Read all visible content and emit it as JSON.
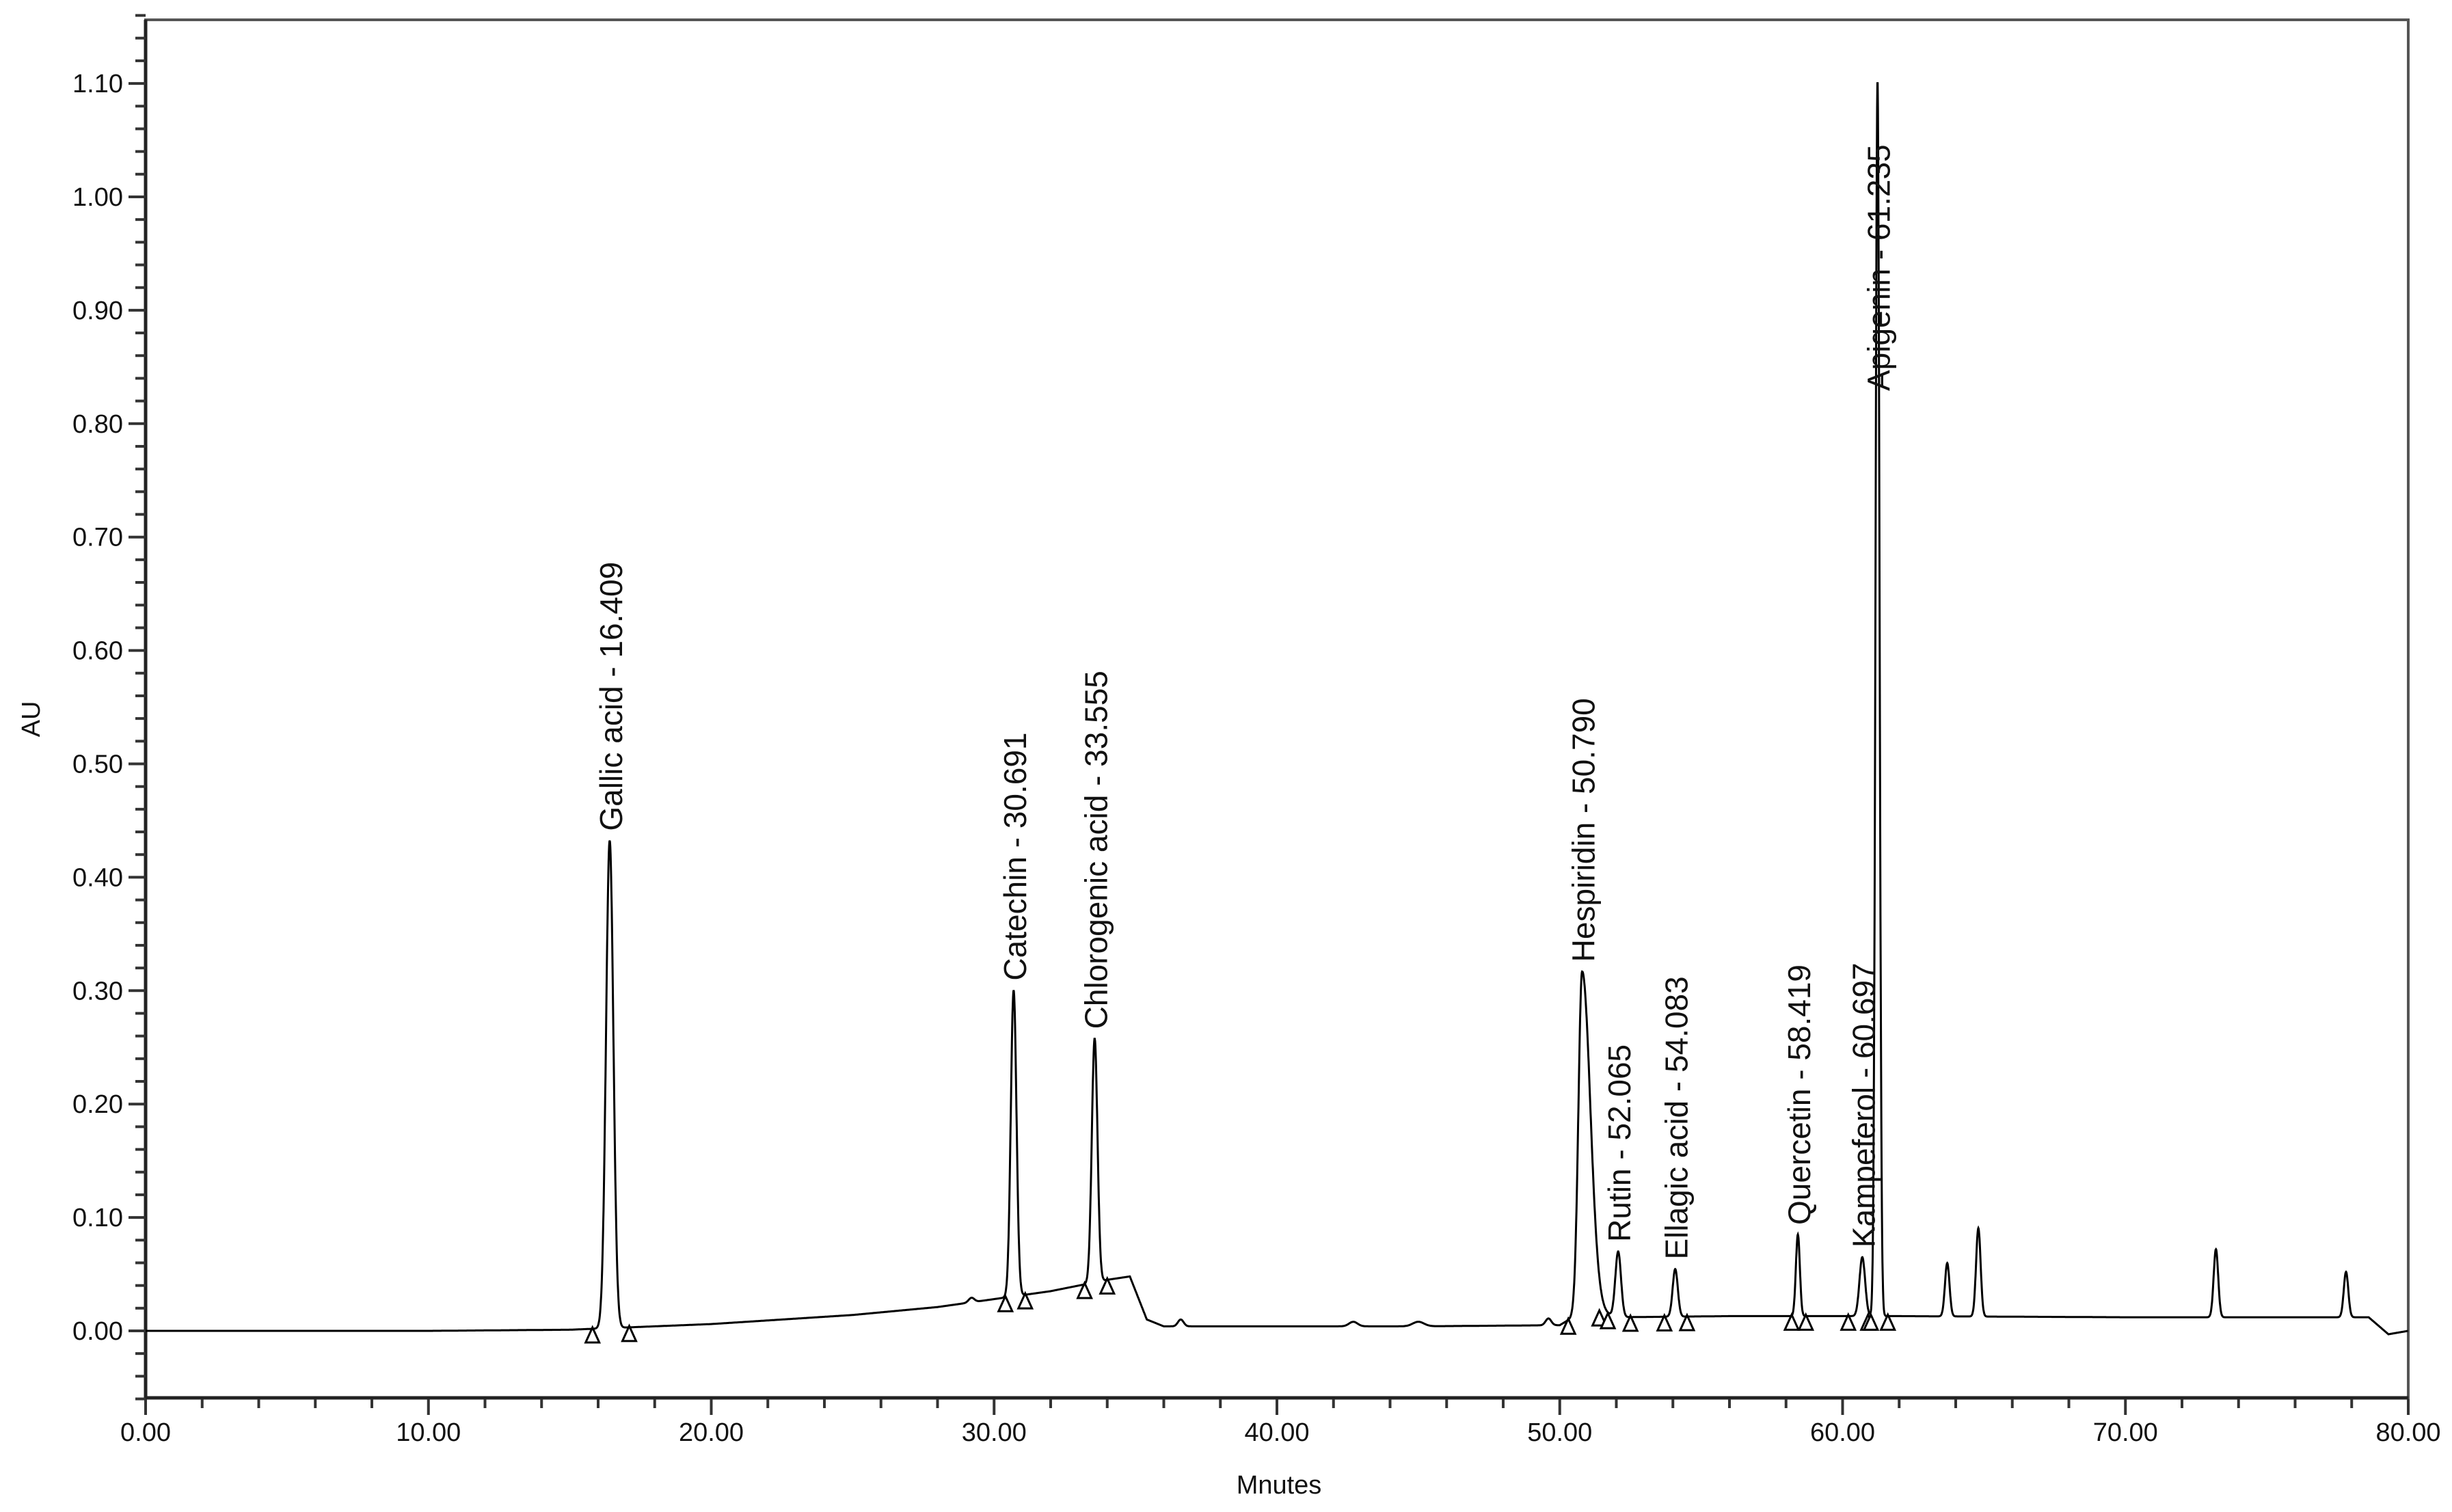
{
  "chart_data": {
    "type": "line",
    "title": "",
    "xlabel": "Mnutes",
    "ylabel": "AU",
    "xlim": [
      0,
      80
    ],
    "ylim": [
      -0.06,
      1.16
    ],
    "x_major_ticks": [
      "0.00",
      "10.00",
      "20.00",
      "30.00",
      "40.00",
      "50.00",
      "60.00",
      "70.00",
      "80.00"
    ],
    "y_major_ticks": [
      "0.00",
      "0.10",
      "0.20",
      "0.30",
      "0.40",
      "0.50",
      "0.60",
      "0.70",
      "0.80",
      "0.90",
      "1.00",
      "1.10"
    ],
    "x_minor_step": 2,
    "y_minor_step": 0.02,
    "grid": false,
    "line_color": "#000000",
    "baseline": [
      [
        0,
        0
      ],
      [
        10,
        0
      ],
      [
        15,
        0.001
      ],
      [
        20,
        0.006
      ],
      [
        25,
        0.014
      ],
      [
        28,
        0.021
      ],
      [
        30,
        0.028
      ],
      [
        32,
        0.035
      ],
      [
        34,
        0.045
      ],
      [
        34.8,
        0.048
      ],
      [
        35.4,
        0.01
      ],
      [
        36,
        0.004
      ],
      [
        45,
        0.004
      ],
      [
        50,
        0.005
      ],
      [
        51,
        0.02
      ],
      [
        52,
        0.012
      ],
      [
        56,
        0.013
      ],
      [
        62,
        0.013
      ],
      [
        70,
        0.012
      ],
      [
        78.6,
        0.012
      ],
      [
        79.3,
        -0.003
      ],
      [
        80,
        0.0
      ]
    ],
    "peaks": [
      {
        "label": "Gallic acid - 16.409",
        "rt": 16.409,
        "height": 0.43,
        "width": 0.13,
        "start": 15.8,
        "end": 17.1
      },
      {
        "label": "Catechin - 30.691",
        "rt": 30.691,
        "height": 0.27,
        "width": 0.1,
        "start": 30.4,
        "end": 31.1
      },
      {
        "label": "Chlorogenic acid - 33.555",
        "rt": 33.555,
        "height": 0.215,
        "width": 0.1,
        "start": 33.2,
        "end": 34.0
      },
      {
        "label": "Hespiridin - 50.790",
        "rt": 50.79,
        "height": 0.3,
        "width": 0.13,
        "start": 50.3,
        "end": 51.4
      },
      {
        "label": "Rutin - 52.065",
        "rt": 52.065,
        "height": 0.058,
        "width": 0.1,
        "start": 51.7,
        "end": 52.5
      },
      {
        "label": "Ellagic acid - 54.083",
        "rt": 54.083,
        "height": 0.042,
        "width": 0.09,
        "start": 53.7,
        "end": 54.5
      },
      {
        "label": "Quercetin - 58.419",
        "rt": 58.419,
        "height": 0.072,
        "width": 0.07,
        "start": 58.2,
        "end": 58.7
      },
      {
        "label": "Kampeferol - 60.697",
        "rt": 60.697,
        "height": 0.052,
        "width": 0.1,
        "start": 60.2,
        "end": 60.9
      },
      {
        "label": "Apigenin - 61.235",
        "rt": 61.235,
        "height": 1.09,
        "width": 0.07,
        "start": 61.0,
        "end": 61.6
      }
    ],
    "unlabeled_peaks": [
      {
        "rt": 63.7,
        "height": 0.047,
        "width": 0.08
      },
      {
        "rt": 64.8,
        "height": 0.078,
        "width": 0.08
      },
      {
        "rt": 73.2,
        "height": 0.06,
        "width": 0.08
      },
      {
        "rt": 77.8,
        "height": 0.04,
        "width": 0.08
      },
      {
        "rt": 29.2,
        "height": 0.004,
        "width": 0.1
      },
      {
        "rt": 36.6,
        "height": 0.006,
        "width": 0.1
      },
      {
        "rt": 42.7,
        "height": 0.004,
        "width": 0.15
      },
      {
        "rt": 45,
        "height": 0.004,
        "width": 0.2
      },
      {
        "rt": 49.6,
        "height": 0.006,
        "width": 0.1
      }
    ]
  }
}
